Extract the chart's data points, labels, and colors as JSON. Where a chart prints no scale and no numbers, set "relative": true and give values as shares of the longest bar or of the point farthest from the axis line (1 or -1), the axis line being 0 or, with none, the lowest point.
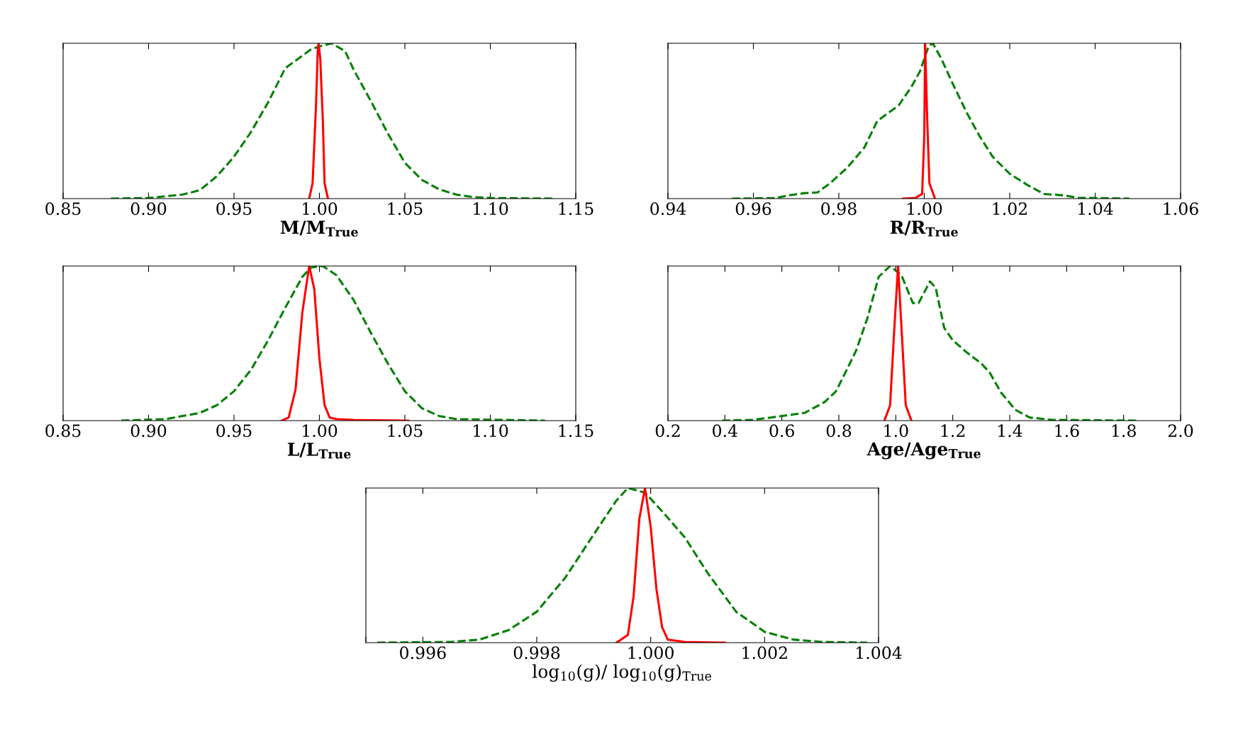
{
  "chart_data": [
    {
      "type": "line",
      "relative": true,
      "xlabel": "M/M$_{True}$",
      "xlim": [
        0.85,
        1.15
      ],
      "xticks": [
        {
          "value": 0.85,
          "label": "0.85"
        },
        {
          "value": 0.9,
          "label": "0.90"
        },
        {
          "value": 0.95,
          "label": "0.95"
        },
        {
          "value": 1.0,
          "label": "1.00"
        },
        {
          "value": 1.05,
          "label": "1.05"
        },
        {
          "value": 1.1,
          "label": "1.10"
        },
        {
          "value": 1.15,
          "label": "1.15"
        }
      ],
      "tick_labels": "x",
      "grid": false,
      "series": [
        {
          "color": "#008000",
          "line_style": "dashed",
          "x": [
            0.878,
            0.9,
            0.92,
            0.93,
            0.94,
            0.95,
            0.96,
            0.97,
            0.98,
            0.99,
            0.995,
            1.0,
            1.007,
            1.015,
            1.02,
            1.03,
            1.04,
            1.05,
            1.06,
            1.07,
            1.08,
            1.09,
            1.1,
            1.137
          ],
          "values": [
            0,
            0.004,
            0.026,
            0.054,
            0.144,
            0.27,
            0.43,
            0.62,
            0.84,
            0.92,
            0.96,
            0.98,
            1,
            0.95,
            0.83,
            0.63,
            0.42,
            0.23,
            0.12,
            0.06,
            0.026,
            0.01,
            0.004,
            0
          ]
        },
        {
          "color": "#ff0000",
          "line_style": "solid",
          "x": [
            0.994,
            0.996,
            0.998,
            0.999,
            0.9995,
            1.0005,
            1.002,
            1.003,
            1.005
          ],
          "values": [
            0,
            0.1,
            0.6,
            0.95,
            1,
            0.9,
            0.5,
            0.1,
            0
          ]
        }
      ]
    },
    {
      "type": "line",
      "relative": true,
      "xlabel": "R/R$_{True}$",
      "xlim": [
        0.94,
        1.06
      ],
      "xticks": [
        {
          "value": 0.94,
          "label": "0.94"
        },
        {
          "value": 0.96,
          "label": "0.96"
        },
        {
          "value": 0.98,
          "label": "0.98"
        },
        {
          "value": 1.0,
          "label": "1.00"
        },
        {
          "value": 1.02,
          "label": "1.02"
        },
        {
          "value": 1.04,
          "label": "1.04"
        },
        {
          "value": 1.06,
          "label": "1.06"
        }
      ],
      "tick_labels": "x",
      "grid": false,
      "series": [
        {
          "color": "#008000",
          "line_style": "dashed",
          "x": [
            0.955,
            0.965,
            0.968,
            0.972,
            0.975,
            0.978,
            0.982,
            0.986,
            0.989,
            0.991,
            0.994,
            0.997,
            0.999,
            1.0,
            1.001,
            1.002,
            1.004,
            1.007,
            1.01,
            1.013,
            1.016,
            1.02,
            1.024,
            1.028,
            1.033,
            1.036,
            1.048
          ],
          "values": [
            0,
            0.003,
            0.02,
            0.035,
            0.04,
            0.1,
            0.2,
            0.33,
            0.5,
            0.54,
            0.6,
            0.72,
            0.82,
            0.9,
            0.98,
            1,
            0.9,
            0.72,
            0.55,
            0.4,
            0.27,
            0.16,
            0.09,
            0.03,
            0.02,
            0.005,
            0
          ]
        },
        {
          "color": "#ff0000",
          "line_style": "solid",
          "x": [
            0.995,
            0.998,
            0.9995,
            1.0,
            1.0002,
            1.0007,
            1.0012,
            1.0025
          ],
          "values": [
            0,
            0.005,
            0.03,
            0.4,
            1,
            0.5,
            0.1,
            0
          ]
        }
      ]
    },
    {
      "type": "line",
      "relative": true,
      "xlabel": "L/L$_{True}$",
      "xlim": [
        0.85,
        1.15
      ],
      "xticks": [
        {
          "value": 0.85,
          "label": "0.85"
        },
        {
          "value": 0.9,
          "label": "0.90"
        },
        {
          "value": 0.95,
          "label": "0.95"
        },
        {
          "value": 1.0,
          "label": "1.00"
        },
        {
          "value": 1.05,
          "label": "1.05"
        },
        {
          "value": 1.1,
          "label": "1.10"
        },
        {
          "value": 1.15,
          "label": "1.15"
        }
      ],
      "tick_labels": "x",
      "grid": false,
      "series": [
        {
          "color": "#008000",
          "line_style": "dashed",
          "x": [
            0.884,
            0.91,
            0.93,
            0.94,
            0.95,
            0.96,
            0.97,
            0.98,
            0.99,
            0.995,
            1.002,
            1.01,
            1.02,
            1.03,
            1.04,
            1.05,
            1.06,
            1.07,
            1.08,
            1.132
          ],
          "values": [
            0,
            0.01,
            0.05,
            0.1,
            0.19,
            0.33,
            0.52,
            0.73,
            0.93,
            0.99,
            1,
            0.94,
            0.78,
            0.57,
            0.37,
            0.19,
            0.08,
            0.03,
            0.01,
            0
          ]
        },
        {
          "color": "#ff0000",
          "line_style": "solid",
          "x": [
            0.978,
            0.982,
            0.986,
            0.99,
            0.994,
            0.997,
            1.0,
            1.003,
            1.006,
            1.01,
            1.02,
            1.052
          ],
          "values": [
            0,
            0.02,
            0.2,
            0.7,
            1,
            0.85,
            0.4,
            0.1,
            0.02,
            0.01,
            0.004,
            0
          ]
        }
      ]
    },
    {
      "type": "line",
      "relative": true,
      "xlabel": "Age/Age$_{True}$",
      "xlim": [
        0.2,
        2.0
      ],
      "xticks": [
        {
          "value": 0.2,
          "label": "0.2"
        },
        {
          "value": 0.4,
          "label": "0.4"
        },
        {
          "value": 0.6,
          "label": "0.6"
        },
        {
          "value": 0.8,
          "label": "0.8"
        },
        {
          "value": 1.0,
          "label": "1.0"
        },
        {
          "value": 1.2,
          "label": "1.2"
        },
        {
          "value": 1.4,
          "label": "1.4"
        },
        {
          "value": 1.6,
          "label": "1.6"
        },
        {
          "value": 1.8,
          "label": "1.8"
        },
        {
          "value": 2.0,
          "label": "2.0"
        }
      ],
      "tick_labels": "x",
      "grid": false,
      "series": [
        {
          "color": "#008000",
          "line_style": "dashed",
          "x": [
            0.39,
            0.5,
            0.6,
            0.68,
            0.75,
            0.79,
            0.82,
            0.86,
            0.9,
            0.94,
            0.98,
            1.02,
            1.06,
            1.08,
            1.12,
            1.14,
            1.17,
            1.2,
            1.25,
            1.3,
            1.33,
            1.37,
            1.42,
            1.47,
            1.55,
            1.85
          ],
          "values": [
            0,
            0.005,
            0.03,
            0.05,
            0.12,
            0.19,
            0.3,
            0.45,
            0.66,
            0.93,
            1,
            0.94,
            0.76,
            0.76,
            0.9,
            0.86,
            0.6,
            0.52,
            0.44,
            0.37,
            0.31,
            0.18,
            0.07,
            0.02,
            0.005,
            0
          ]
        },
        {
          "color": "#ff0000",
          "line_style": "solid",
          "x": [
            0.96,
            0.98,
            0.995,
            1.008,
            1.02,
            1.035,
            1.055
          ],
          "values": [
            0,
            0.1,
            0.6,
            1,
            0.6,
            0.1,
            0
          ]
        }
      ]
    },
    {
      "type": "line",
      "relative": true,
      "xlabel": "log$_{10}$(g)/ log$_{10}$(g)$_{True}$",
      "xlim": [
        0.995,
        1.004
      ],
      "xticks": [
        {
          "value": 0.995,
          "label": null
        },
        {
          "value": 0.996,
          "label": "0.996"
        },
        {
          "value": 0.998,
          "label": "0.998"
        },
        {
          "value": 1.0,
          "label": "1.000"
        },
        {
          "value": 1.002,
          "label": "1.002"
        },
        {
          "value": 1.004,
          "label": "1.004"
        }
      ],
      "tick_labels": "x",
      "grid": false,
      "series": [
        {
          "color": "#008000",
          "line_style": "dashed",
          "x": [
            0.9952,
            0.9965,
            0.997,
            0.9975,
            0.998,
            0.9985,
            0.999,
            0.9994,
            0.9996,
            0.9999,
            1.0002,
            1.0006,
            1.001,
            1.0015,
            1.002,
            1.0025,
            1.003,
            1.0038
          ],
          "values": [
            0,
            0.005,
            0.02,
            0.08,
            0.2,
            0.42,
            0.7,
            0.92,
            1,
            0.97,
            0.85,
            0.68,
            0.45,
            0.2,
            0.07,
            0.02,
            0.005,
            0
          ]
        },
        {
          "color": "#ff0000",
          "line_style": "solid",
          "x": [
            0.9994,
            0.9996,
            0.9997,
            0.9998,
            0.9999,
            1.0,
            1.0001,
            1.0002,
            1.0003,
            1.0006,
            1.0013
          ],
          "values": [
            0,
            0.05,
            0.3,
            0.8,
            1,
            0.75,
            0.35,
            0.1,
            0.02,
            0.005,
            0
          ]
        }
      ]
    }
  ]
}
